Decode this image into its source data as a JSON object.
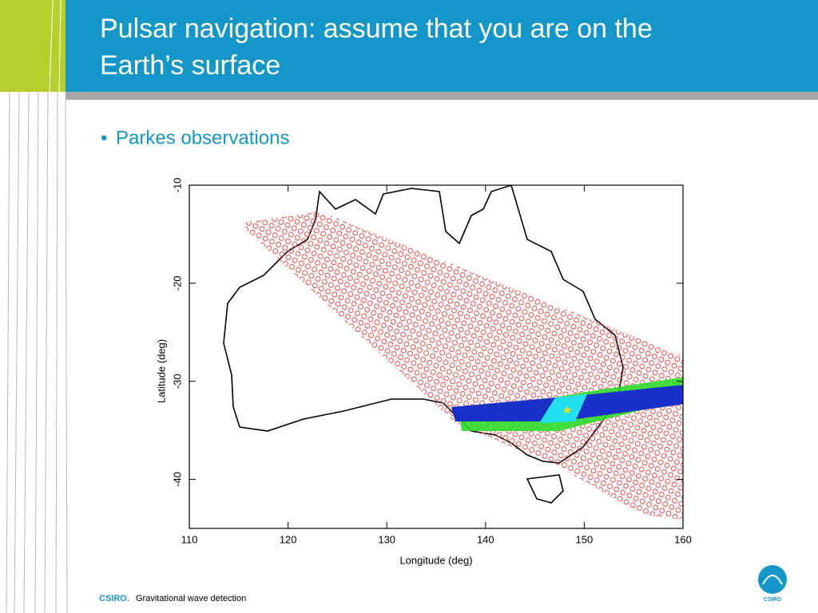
{
  "header": {
    "title_lines": [
      "Pulsar navigation: assume that you are on the",
      "Earth’s surface"
    ]
  },
  "bullets": [
    "Parkes observations"
  ],
  "figure": {
    "xlabel": "Longitude (deg)",
    "ylabel": "Latitude (deg)",
    "xlim": [
      110,
      160
    ],
    "ylim": [
      -45,
      -10
    ],
    "xticks": [
      110,
      120,
      130,
      140,
      150,
      160
    ],
    "yticks": [
      -40,
      -30,
      -20,
      -10
    ]
  },
  "footer": {
    "brand": "CSIRO.",
    "text": "Gravitational wave detection",
    "logo_text": "CSIRO"
  }
}
